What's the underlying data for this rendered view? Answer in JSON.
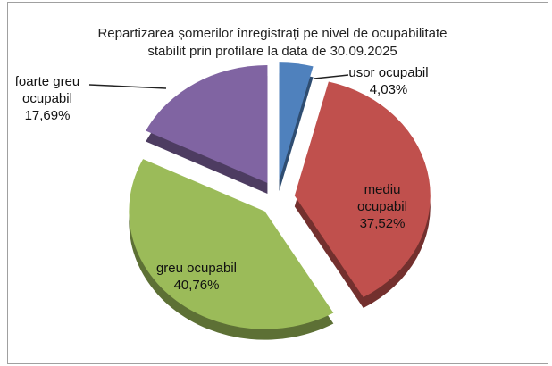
{
  "chart_data": {
    "type": "pie",
    "title": [
      "Repartizarea șomerilor înregistrați pe nivel de ocupabilitate",
      "stabilit prin profilare la data de 30.09.2025"
    ],
    "categories": [
      "usor ocupabil",
      "mediu ocupabil",
      "greu ocupabil",
      "foarte greu ocupabil"
    ],
    "values": [
      4.03,
      37.52,
      40.76,
      17.69
    ],
    "value_labels": [
      "4,03%",
      "37,52%",
      "40,76%",
      "17,69%"
    ],
    "colors": [
      "#4f81bd",
      "#c0504d",
      "#9bbb59",
      "#8064a2"
    ]
  }
}
